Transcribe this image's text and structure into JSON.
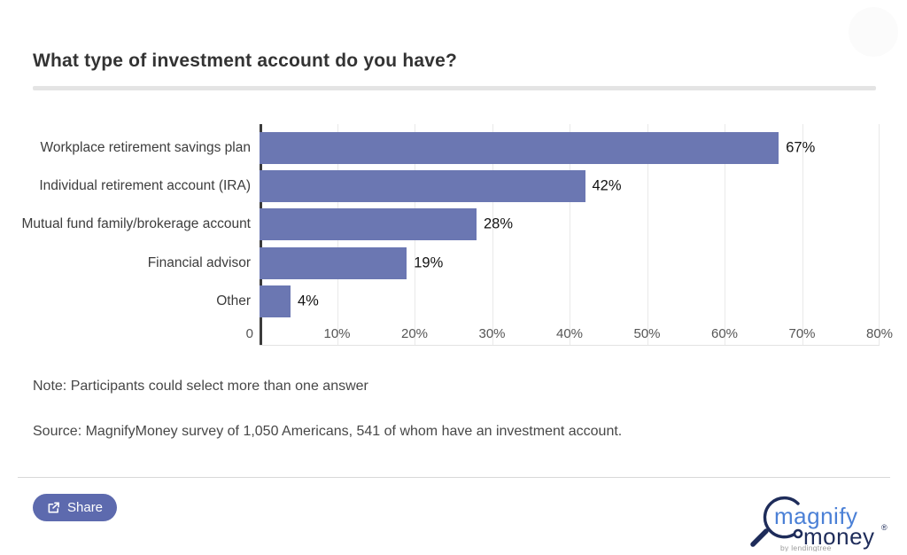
{
  "header": {
    "title": "What type of investment account do you have?"
  },
  "chart_data": {
    "type": "bar",
    "orientation": "horizontal",
    "title": "What type of investment account do you have?",
    "categories": [
      "Workplace retirement savings plan",
      "Individual retirement account (IRA)",
      "Mutual fund family/brokerage account",
      "Financial advisor",
      "Other"
    ],
    "values": [
      67,
      42,
      28,
      19,
      4
    ],
    "value_labels": [
      "67%",
      "42%",
      "28%",
      "19%",
      "4%"
    ],
    "xlim": [
      0,
      80
    ],
    "tick_labels": [
      "0",
      "10%",
      "20%",
      "30%",
      "40%",
      "50%",
      "60%",
      "70%",
      "80%"
    ],
    "bar_color": "#6b77b2",
    "grid": true,
    "legend": "none"
  },
  "notes": {
    "note": "Note: Participants could select more than one answer",
    "source": "Source: MagnifyMoney survey of 1,050 Americans, 541 of whom have an investment account."
  },
  "footer": {
    "share_label": "Share",
    "share_color": "#5d6aae",
    "logo": {
      "magnify": "magnify",
      "money": "money",
      "registered": "®",
      "byline": "by lendingtree",
      "blue": "#4b80d6",
      "navy": "#1e2c5a"
    }
  }
}
